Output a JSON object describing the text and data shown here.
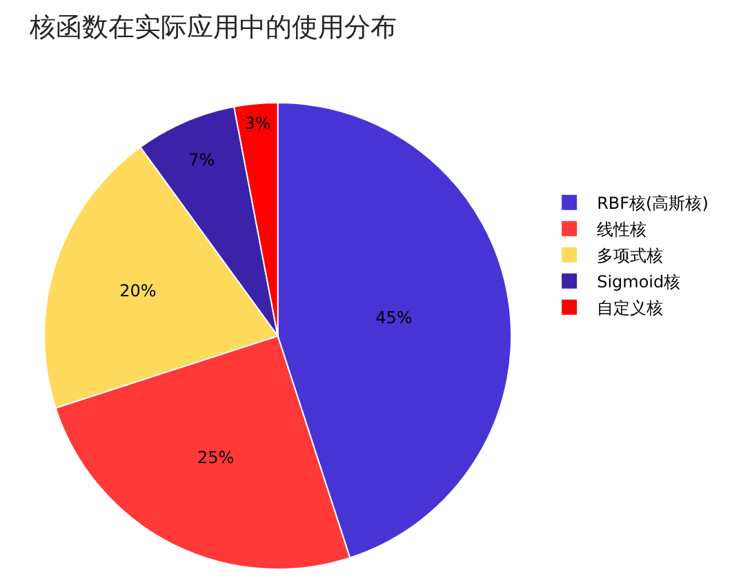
{
  "chart_data": {
    "type": "pie",
    "title": "核函数在实际应用中的使用分布",
    "categories": [
      "RBF核(高斯核)",
      "线性核",
      "多项式核",
      "Sigmoid核",
      "自定义核"
    ],
    "values": [
      45,
      25,
      20,
      7,
      3
    ],
    "value_labels": [
      "45%",
      "25%",
      "20%",
      "7%",
      "3%"
    ],
    "colors": [
      "#4834d4",
      "#ff3838",
      "#ffda5c",
      "#3c22a8",
      "#ff0000"
    ],
    "legend": "right"
  }
}
